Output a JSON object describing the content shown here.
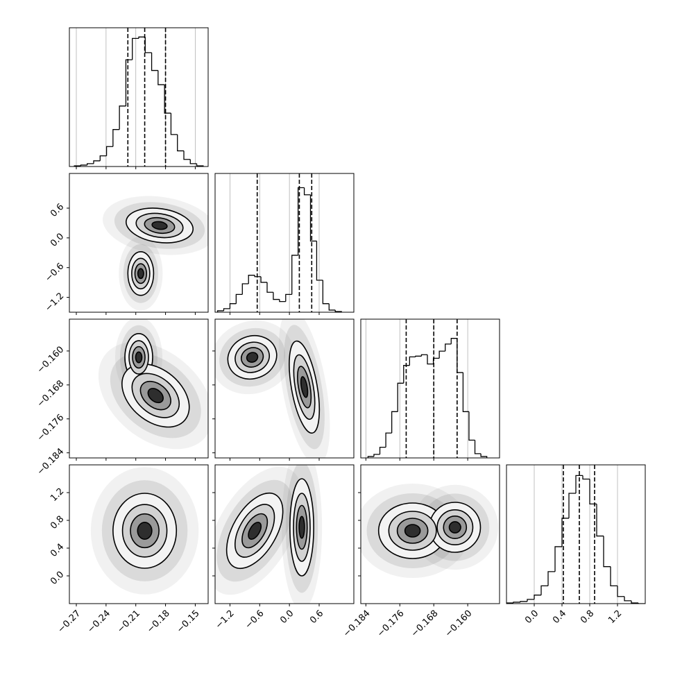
{
  "chart_data": {
    "type": "corner",
    "grid": true,
    "params": [
      {
        "lim": [
          -0.277,
          -0.137
        ],
        "ticks": [
          {
            "value": -0.27,
            "label": "−0.27"
          },
          {
            "value": -0.24,
            "label": "−0.24"
          },
          {
            "value": -0.21,
            "label": "−0.21"
          },
          {
            "value": -0.18,
            "label": "−0.18"
          },
          {
            "value": -0.15,
            "label": "−0.15"
          }
        ],
        "bins": [
          -0.272,
          -0.2655,
          -0.259,
          -0.2525,
          -0.246,
          -0.2395,
          -0.233,
          -0.2265,
          -0.22,
          -0.2135,
          -0.207,
          -0.2005,
          -0.194,
          -0.1875,
          -0.181,
          -0.1745,
          -0.168,
          -0.1615,
          -0.155,
          -0.1485,
          -0.142
        ],
        "counts": [
          1,
          2,
          4,
          8,
          15,
          28,
          52,
          85,
          150,
          180,
          182,
          160,
          135,
          115,
          75,
          45,
          22,
          10,
          4,
          1
        ],
        "ylim": [
          0,
          195
        ],
        "quantiles": [
          -0.218,
          -0.201,
          -0.18
        ]
      },
      {
        "lim": [
          -1.5,
          1.3
        ],
        "ticks": [
          {
            "value": -1.2,
            "label": "−1.2"
          },
          {
            "value": -0.6,
            "label": "−0.6"
          },
          {
            "value": 0.0,
            "label": "0.0"
          },
          {
            "value": 0.6,
            "label": "0.6"
          }
        ],
        "bins": [
          -1.45,
          -1.325,
          -1.2,
          -1.075,
          -0.95,
          -0.825,
          -0.7,
          -0.575,
          -0.45,
          -0.325,
          -0.2,
          -0.075,
          0.05,
          0.175,
          0.3,
          0.425,
          0.55,
          0.675,
          0.8,
          0.925,
          1.05
        ],
        "counts": [
          2,
          5,
          12,
          25,
          40,
          52,
          50,
          42,
          28,
          18,
          15,
          25,
          80,
          175,
          165,
          100,
          45,
          12,
          3,
          1
        ],
        "ylim": [
          0,
          195
        ],
        "quantiles": [
          -0.65,
          0.2,
          0.45
        ]
      },
      {
        "lim": [
          -0.1852,
          -0.1525
        ],
        "ticks": [
          {
            "value": -0.184,
            "label": "−0.184"
          },
          {
            "value": -0.176,
            "label": "−0.176"
          },
          {
            "value": -0.168,
            "label": "−0.168"
          },
          {
            "value": -0.16,
            "label": "−0.160"
          }
        ],
        "bins": [
          -0.1835,
          -0.1821,
          -0.1807,
          -0.1793,
          -0.1779,
          -0.1765,
          -0.1751,
          -0.1737,
          -0.1723,
          -0.1709,
          -0.1695,
          -0.1681,
          -0.1667,
          -0.1653,
          -0.1639,
          -0.1625,
          -0.1611,
          -0.1597,
          -0.1583,
          -0.1569,
          -0.1555
        ],
        "counts": [
          2,
          5,
          15,
          35,
          65,
          105,
          130,
          142,
          143,
          145,
          132,
          140,
          150,
          160,
          168,
          120,
          65,
          25,
          6,
          2
        ],
        "ylim": [
          0,
          195
        ],
        "quantiles": [
          -0.1745,
          -0.168,
          -0.1625
        ]
      },
      {
        "lim": [
          -0.4,
          1.6
        ],
        "ticks": [
          {
            "value": 0.0,
            "label": "0.0"
          },
          {
            "value": 0.4,
            "label": "0.4"
          },
          {
            "value": 0.8,
            "label": "0.8"
          },
          {
            "value": 1.2,
            "label": "1.2"
          }
        ],
        "bins": [
          -0.4,
          -0.3,
          -0.2,
          -0.1,
          0.0,
          0.1,
          0.2,
          0.3,
          0.4,
          0.5,
          0.6,
          0.7,
          0.8,
          0.9,
          1.0,
          1.1,
          1.2,
          1.3,
          1.4,
          1.5,
          1.6
        ],
        "counts": [
          1,
          2,
          3,
          6,
          12,
          25,
          45,
          80,
          120,
          155,
          180,
          175,
          140,
          95,
          52,
          25,
          10,
          4,
          1,
          0
        ],
        "ylim": [
          0,
          195
        ],
        "quantiles": [
          0.42,
          0.65,
          0.87
        ]
      }
    ],
    "pairs": [
      [
        {
          "blobs": [
            {
              "x": -0.186,
              "y": 0.25,
              "sx": 0.017,
              "sy": 0.17,
              "rot": 8
            },
            {
              "x": -0.205,
              "y": -0.72,
              "sx": 0.0065,
              "sy": 0.22,
              "rot": 0
            }
          ]
        }
      ],
      [
        {
          "blobs": [
            {
              "x": -0.207,
              "y": -0.1615,
              "sx": 0.007,
              "sy": 0.0028,
              "rot": 0
            },
            {
              "x": -0.19,
              "y": -0.1705,
              "sx": 0.013,
              "sy": 0.0045,
              "rot": -50
            }
          ]
        },
        {
          "blobs": [
            {
              "x": -0.75,
              "y": -0.1615,
              "sx": 0.25,
              "sy": 0.0025,
              "rot": -20
            },
            {
              "x": 0.3,
              "y": -0.1685,
              "sx": 0.13,
              "sy": 0.0055,
              "rot": -10
            }
          ]
        }
      ],
      [
        {
          "blobs": [
            {
              "x": -0.201,
              "y": 0.65,
              "sx": 0.016,
              "sy": 0.27,
              "rot": 0
            }
          ]
        },
        {
          "blobs": [
            {
              "x": -0.7,
              "y": 0.65,
              "sx": 0.22,
              "sy": 0.3,
              "rot": 30
            },
            {
              "x": 0.25,
              "y": 0.7,
              "sx": 0.12,
              "sy": 0.35,
              "rot": 0
            }
          ]
        },
        {
          "blobs": [
            {
              "x": -0.173,
              "y": 0.65,
              "sx": 0.004,
              "sy": 0.2,
              "rot": 0
            },
            {
              "x": -0.163,
              "y": 0.7,
              "sx": 0.003,
              "sy": 0.18,
              "rot": 0
            }
          ]
        }
      ]
    ]
  }
}
